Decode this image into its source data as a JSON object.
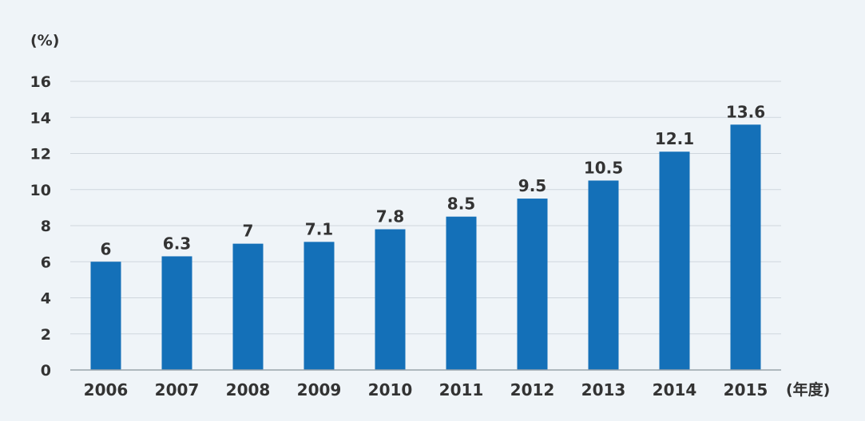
{
  "chart_data": {
    "type": "bar",
    "categories": [
      "2006",
      "2007",
      "2008",
      "2009",
      "2010",
      "2011",
      "2012",
      "2013",
      "2014",
      "2015"
    ],
    "values": [
      6,
      6.3,
      7,
      7.1,
      7.8,
      8.5,
      9.5,
      10.5,
      12.1,
      13.6
    ],
    "value_labels": [
      "6",
      "6.3",
      "7",
      "7.1",
      "7.8",
      "8.5",
      "9.5",
      "10.5",
      "12.1",
      "13.6"
    ],
    "y_ticks": [
      "0",
      "2",
      "4",
      "6",
      "8",
      "10",
      "12",
      "14",
      "16"
    ],
    "ylim": [
      0,
      16
    ],
    "y_unit": "(%)",
    "x_unit": "(年度)",
    "grid": true,
    "bar_color": "#1470b8",
    "grid_color": "#cfd6dd",
    "axis_color": "#9aa3ab"
  }
}
